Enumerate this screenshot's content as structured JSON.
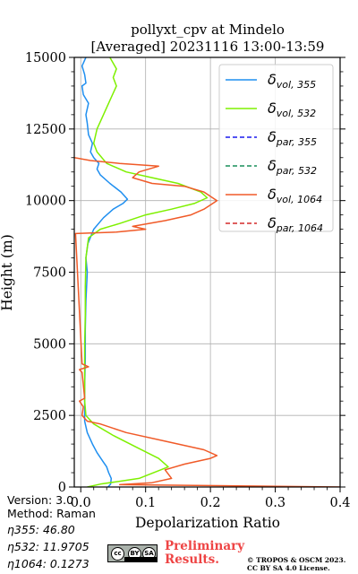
{
  "chart_data": {
    "type": "line",
    "title_line1": "pollyxt_cpv at Mindelo",
    "title_line2": "[Averaged] 20231116 13:00-13:59",
    "xlabel": "Depolarization Ratio",
    "ylabel": "Height (m)",
    "xlim": [
      -0.01,
      0.4
    ],
    "ylim": [
      0,
      15000
    ],
    "xticks": [
      "0.0",
      "0.1",
      "0.2",
      "0.3",
      "0.4"
    ],
    "xtick_values": [
      0,
      0.1,
      0.2,
      0.3,
      0.4
    ],
    "yticks": [
      "0",
      "2500",
      "5000",
      "7500",
      "10000",
      "12500",
      "15000"
    ],
    "ytick_values": [
      0,
      2500,
      5000,
      7500,
      10000,
      12500,
      15000
    ],
    "grid": true,
    "legend_position": "top-right",
    "series": [
      {
        "key": "vol355",
        "legend_main": "δ",
        "legend_sub": "vol, 355",
        "color": "#1f8ff0",
        "dash": "solid",
        "points": [
          [
            0.042,
            0
          ],
          [
            0.046,
            100
          ],
          [
            0.047,
            300
          ],
          [
            0.043,
            500
          ],
          [
            0.04,
            700
          ],
          [
            0.034,
            900
          ],
          [
            0.025,
            1200
          ],
          [
            0.018,
            1500
          ],
          [
            0.01,
            1900
          ],
          [
            0.006,
            2300
          ],
          [
            0.006,
            2700
          ],
          [
            0.006,
            3500
          ],
          [
            0.007,
            4500
          ],
          [
            0.007,
            5500
          ],
          [
            0.008,
            6500
          ],
          [
            0.01,
            7500
          ],
          [
            0.008,
            8000
          ],
          [
            0.011,
            8500
          ],
          [
            0.02,
            9000
          ],
          [
            0.035,
            9400
          ],
          [
            0.05,
            9700
          ],
          [
            0.065,
            9900
          ],
          [
            0.072,
            10050
          ],
          [
            0.062,
            10300
          ],
          [
            0.045,
            10600
          ],
          [
            0.03,
            10900
          ],
          [
            0.025,
            11100
          ],
          [
            0.028,
            11300
          ],
          [
            0.02,
            11500
          ],
          [
            0.015,
            11700
          ],
          [
            0.018,
            12000
          ],
          [
            0.012,
            12300
          ],
          [
            0.01,
            12700
          ],
          [
            0.008,
            13000
          ],
          [
            0.012,
            13400
          ],
          [
            0.004,
            13700
          ],
          [
            0.002,
            14000
          ],
          [
            0.008,
            14100
          ],
          [
            0.006,
            14400
          ],
          [
            0.002,
            14700
          ],
          [
            0.008,
            15000
          ]
        ]
      },
      {
        "key": "vol532",
        "legend_main": "δ",
        "legend_sub": "vol, 532",
        "color": "#7ef000",
        "dash": "solid",
        "points": [
          [
            0.01,
            0
          ],
          [
            0.03,
            100
          ],
          [
            0.09,
            300
          ],
          [
            0.135,
            700
          ],
          [
            0.12,
            1000
          ],
          [
            0.085,
            1400
          ],
          [
            0.05,
            1800
          ],
          [
            0.02,
            2200
          ],
          [
            0.008,
            2500
          ],
          [
            0.006,
            3000
          ],
          [
            0.006,
            4000
          ],
          [
            0.006,
            5000
          ],
          [
            0.007,
            6000
          ],
          [
            0.007,
            7000
          ],
          [
            0.008,
            8000
          ],
          [
            0.012,
            8700
          ],
          [
            0.03,
            9000
          ],
          [
            0.06,
            9200
          ],
          [
            0.1,
            9500
          ],
          [
            0.14,
            9700
          ],
          [
            0.175,
            9900
          ],
          [
            0.195,
            10100
          ],
          [
            0.185,
            10300
          ],
          [
            0.15,
            10600
          ],
          [
            0.11,
            10800
          ],
          [
            0.07,
            11000
          ],
          [
            0.04,
            11300
          ],
          [
            0.025,
            11700
          ],
          [
            0.02,
            12000
          ],
          [
            0.025,
            12500
          ],
          [
            0.035,
            13000
          ],
          [
            0.045,
            13500
          ],
          [
            0.055,
            14000
          ],
          [
            0.05,
            14300
          ],
          [
            0.055,
            14600
          ],
          [
            0.045,
            15000
          ]
        ]
      },
      {
        "key": "par355",
        "legend_main": "δ",
        "legend_sub": "par, 355",
        "color": "#1a1aee",
        "dash": "dashed",
        "points": []
      },
      {
        "key": "par532",
        "legend_main": "δ",
        "legend_sub": "par, 532",
        "color": "#198f5a",
        "dash": "dashed",
        "points": []
      },
      {
        "key": "vol1064",
        "legend_main": "δ",
        "legend_sub": "vol, 1064",
        "color": "#f05a28",
        "dash": "solid",
        "points": [
          [
            0.4,
            0
          ],
          [
            0.06,
            80
          ],
          [
            0.11,
            150
          ],
          [
            0.14,
            300
          ],
          [
            0.13,
            600
          ],
          [
            0.16,
            800
          ],
          [
            0.2,
            1000
          ],
          [
            0.21,
            1100
          ],
          [
            0.19,
            1300
          ],
          [
            0.13,
            1600
          ],
          [
            0.07,
            1900
          ],
          [
            0.03,
            2200
          ],
          [
            0.01,
            2300
          ],
          [
            0.002,
            2500
          ],
          [
            0.004,
            2800
          ],
          [
            -0.002,
            3000
          ],
          [
            0.006,
            3100
          ],
          [
            0.002,
            4000
          ],
          [
            -0.002,
            4100
          ],
          [
            0.012,
            4200
          ],
          [
            0.002,
            4300
          ],
          [
            -0.008,
            8850
          ],
          [
            0.055,
            8900
          ],
          [
            0.1,
            9000
          ],
          [
            0.08,
            9100
          ],
          [
            0.13,
            9300
          ],
          [
            0.17,
            9500
          ],
          [
            0.19,
            9700
          ],
          [
            0.21,
            10000
          ],
          [
            0.19,
            10300
          ],
          [
            0.16,
            10500
          ],
          [
            0.11,
            10600
          ],
          [
            0.08,
            10800
          ],
          [
            0.09,
            11000
          ],
          [
            0.12,
            11200
          ],
          [
            0.06,
            11300
          ],
          [
            0.015,
            11400
          ],
          [
            -0.01,
            11500
          ]
        ]
      },
      {
        "key": "par1064",
        "legend_main": "δ",
        "legend_sub": "par, 1064",
        "color": "#d42a2a",
        "dash": "dashed",
        "points": []
      }
    ]
  },
  "info": {
    "version": "Version: 3.0",
    "method": "Method: Raman",
    "eta355": "η355:  46.80",
    "eta532": "η532: 11.9705",
    "eta1064": "η1064: 0.1273"
  },
  "footer": {
    "prelim_line1": "Preliminary",
    "prelim_line2": "Results.",
    "copyright1": "© TROPOS & OSCM 2023.",
    "copyright2": "CC BY SA 4.0 License.",
    "cc_label": "cc",
    "by_label": "BY",
    "sa_label": "SA"
  }
}
